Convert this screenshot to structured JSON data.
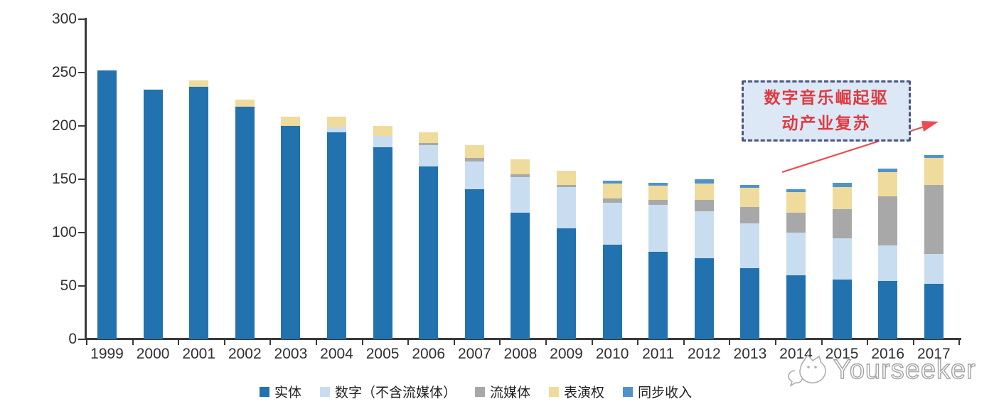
{
  "chart_data": {
    "type": "bar",
    "stacked": true,
    "categories": [
      "1999",
      "2000",
      "2001",
      "2002",
      "2003",
      "2004",
      "2005",
      "2006",
      "2007",
      "2008",
      "2009",
      "2010",
      "2011",
      "2012",
      "2013",
      "2014",
      "2015",
      "2016",
      "2017"
    ],
    "series": [
      {
        "name": "实体",
        "color": "#2172ae",
        "values": [
          252,
          234,
          237,
          218,
          200,
          194,
          180,
          162,
          141,
          119,
          104,
          89,
          82,
          76,
          67,
          60,
          56,
          55,
          52
        ]
      },
      {
        "name": "数字（不含流媒体）",
        "color": "#c9ddf1",
        "values": [
          0,
          0,
          0,
          0,
          0,
          5,
          11,
          20,
          26,
          33,
          39,
          39,
          44,
          44,
          42,
          40,
          39,
          33,
          28
        ]
      },
      {
        "name": "流媒体",
        "color": "#a8a8a8",
        "values": [
          0,
          0,
          0,
          0,
          0,
          0,
          0,
          2,
          3,
          3,
          2,
          4,
          5,
          11,
          15,
          19,
          27,
          46,
          65
        ]
      },
      {
        "name": "表演权",
        "color": "#efdb9b",
        "values": [
          0,
          0,
          6,
          7,
          9,
          10,
          9,
          10,
          12,
          14,
          13,
          14,
          13,
          15,
          18,
          19,
          21,
          23,
          25
        ]
      },
      {
        "name": "同步收入",
        "color": "#4f93cd",
        "values": [
          0,
          0,
          0,
          0,
          0,
          0,
          0,
          0,
          0,
          0,
          0,
          3,
          3,
          4,
          3,
          3,
          4,
          3,
          3
        ]
      }
    ],
    "totals": [
      252,
      234,
      243,
      225,
      209,
      209,
      200,
      194,
      182,
      169,
      158,
      149,
      147,
      150,
      145,
      141,
      147,
      160,
      173
    ],
    "y_axis": {
      "min": 0,
      "max": 300,
      "tick_interval": 50,
      "ticks": [
        0,
        50,
        100,
        150,
        200,
        250,
        300
      ]
    },
    "grid": false,
    "legend_position": "bottom"
  },
  "annotation": {
    "line1": "数字音乐崛起驱",
    "line2": "动产业复苏",
    "text_color": "#df3a41",
    "border_color": "#4a5584",
    "fill_color": "#dce8f6",
    "arrow_color": "#ee4a52"
  },
  "watermark": {
    "text": "Yourseeker"
  }
}
